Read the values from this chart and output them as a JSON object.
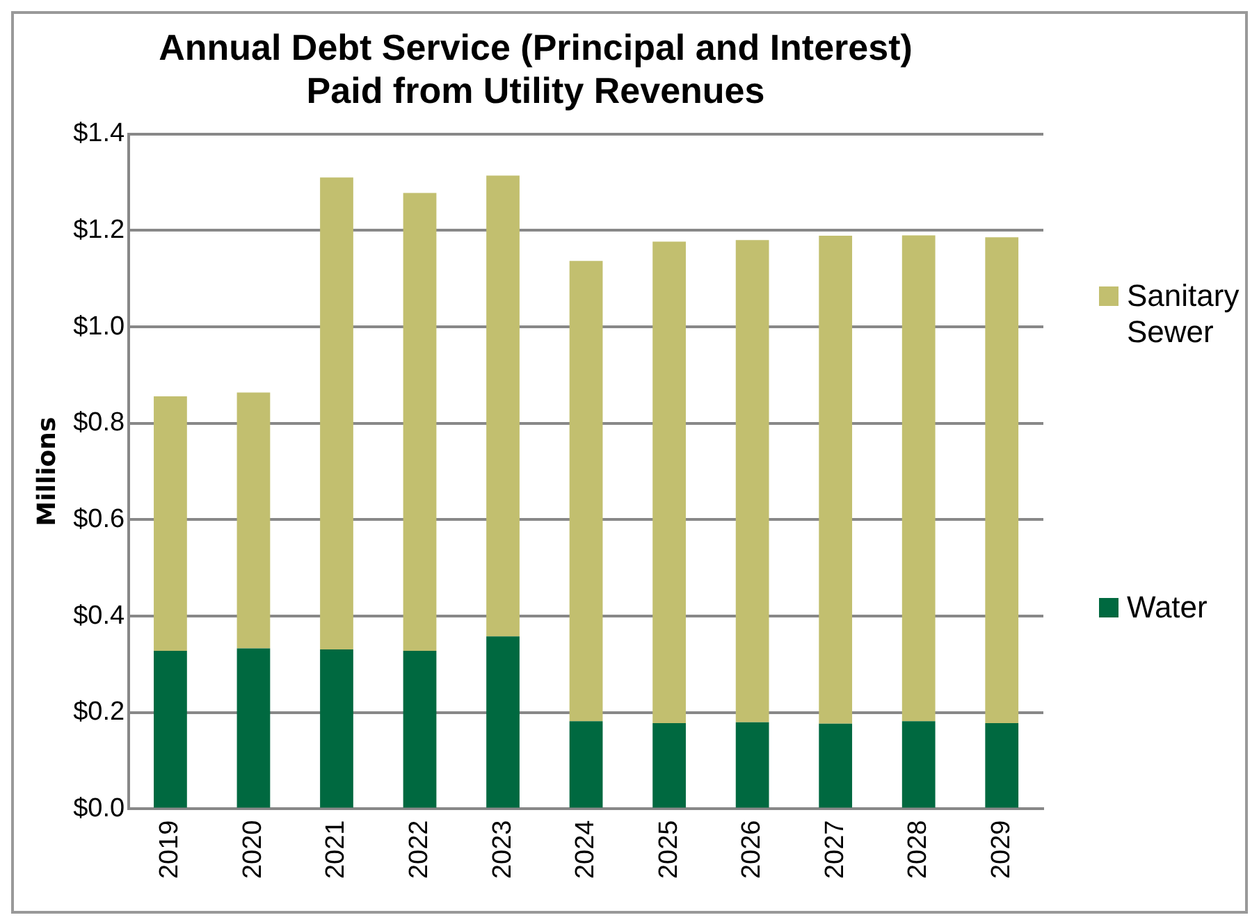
{
  "chart_data": {
    "type": "bar",
    "title": [
      "Annual Debt Service (Principal and Interest)",
      "Paid from Utility Revenues"
    ],
    "ylabel": "Millions",
    "categories": [
      "2019",
      "2020",
      "2021",
      "2022",
      "2023",
      "2024",
      "2025",
      "2026",
      "2027",
      "2028",
      "2029"
    ],
    "stacked": true,
    "series": [
      {
        "name": "Water",
        "color": "#006940",
        "values": [
          0.328,
          0.333,
          0.331,
          0.328,
          0.358,
          0.182,
          0.178,
          0.18,
          0.177,
          0.182,
          0.178
        ]
      },
      {
        "name": "Sanitary Sewer",
        "color": "#c2bf6f",
        "values": [
          0.528,
          0.531,
          0.979,
          0.95,
          0.956,
          0.955,
          0.999,
          1.0,
          1.012,
          1.008,
          1.008
        ]
      }
    ],
    "ylim": [
      0,
      1.4
    ],
    "yticks": [
      {
        "value": 0,
        "label": "$0.0"
      },
      {
        "value": 0.2,
        "label": "$0.2"
      },
      {
        "value": 0.4,
        "label": "$0.4"
      },
      {
        "value": 0.6,
        "label": "$0.6"
      },
      {
        "value": 0.8,
        "label": "$0.8"
      },
      {
        "value": 1.0,
        "label": "$1.0"
      },
      {
        "value": 1.2,
        "label": "$1.2"
      },
      {
        "value": 1.4,
        "label": "$1.4"
      }
    ],
    "grid": "y",
    "legend": "right"
  }
}
